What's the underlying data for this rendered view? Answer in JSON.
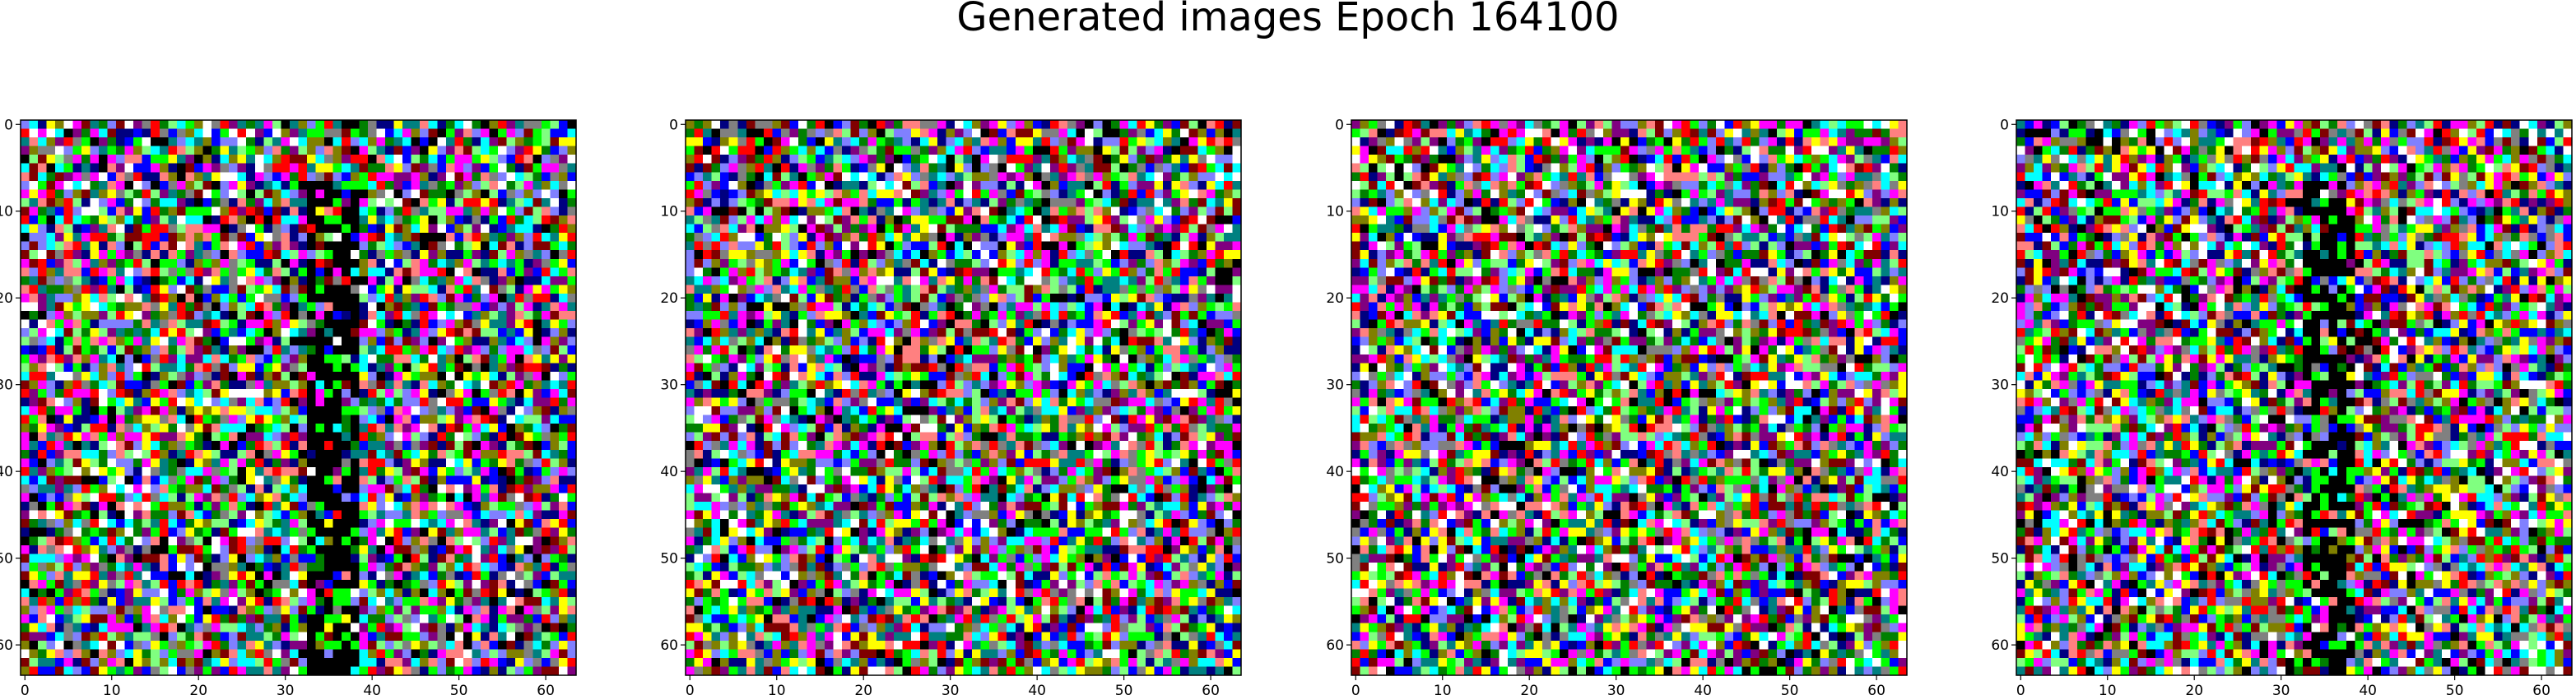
{
  "figure": {
    "title": "Generated images Epoch 164100"
  },
  "chart_data": {
    "type": "heatmap",
    "title": "Generated images Epoch 164100",
    "panel_count": 4,
    "image_resolution": [
      64,
      64
    ],
    "xlim": [
      -0.5,
      63.5
    ],
    "ylim": [
      63.5,
      -0.5
    ],
    "xticks": [
      0,
      10,
      20,
      30,
      40,
      50,
      60
    ],
    "yticks": [
      0,
      10,
      20,
      30,
      40,
      50,
      60
    ],
    "grid": false,
    "legend": "none",
    "pixel_palette": [
      "#ff0000",
      "#00ff00",
      "#0000ff",
      "#ffff00",
      "#ff00ff",
      "#00ffff",
      "#ffffff",
      "#000000",
      "#808080",
      "#800000",
      "#008000",
      "#000080",
      "#ff8080",
      "#80ff80",
      "#8080ff",
      "#808000",
      "#800080",
      "#008080"
    ],
    "panels": [
      {
        "index": 1,
        "dark_band_columns": [
          33,
          38
        ]
      },
      {
        "index": 2,
        "dark_band_columns": []
      },
      {
        "index": 3,
        "dark_band_columns": []
      },
      {
        "index": 4,
        "dark_band_columns": [
          33,
          38
        ]
      }
    ]
  }
}
